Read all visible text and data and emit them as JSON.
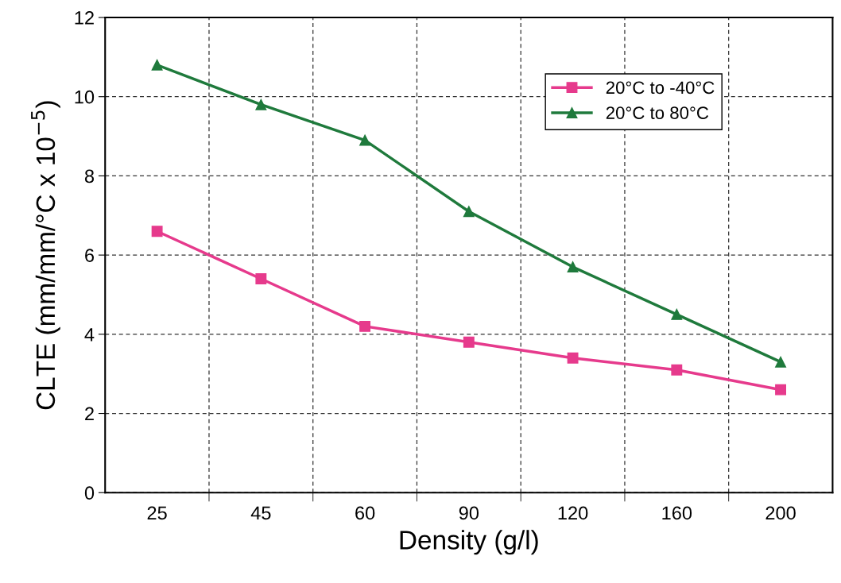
{
  "chart_data": {
    "type": "line",
    "xlabel": "Density (g/l)",
    "ylabel": "CLTE (mm/mm/°C x 10$^{−5}$)",
    "categories": [
      "25",
      "45",
      "60",
      "90",
      "120",
      "160",
      "200"
    ],
    "series": [
      {
        "name": "20°C to -40°C",
        "color": "#e63a8c",
        "marker": "square",
        "values": [
          6.6,
          5.4,
          4.2,
          3.8,
          3.4,
          3.1,
          2.6
        ]
      },
      {
        "name": "20°C to 80°C",
        "color": "#1f7a3c",
        "marker": "triangle",
        "values": [
          10.8,
          9.8,
          8.9,
          7.1,
          5.7,
          4.5,
          3.3
        ]
      }
    ],
    "ylim": [
      0,
      12
    ],
    "yticks": [
      0,
      2,
      4,
      6,
      8,
      10,
      12
    ],
    "grid": true,
    "legend": "top right",
    "line_style": "solid"
  }
}
